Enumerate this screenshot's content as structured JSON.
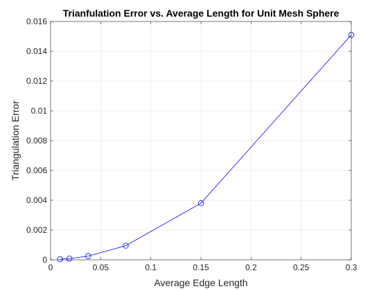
{
  "chart_data": {
    "type": "line",
    "title": "Trianfulation Error vs. Average Length for Unit Mesh Sphere",
    "xlabel": "Average Edge Length",
    "ylabel": "Triangulation Error",
    "xlim": [
      0,
      0.3
    ],
    "ylim": [
      0,
      0.016
    ],
    "xticks": [
      0,
      0.05,
      0.1,
      0.15,
      0.2,
      0.25,
      0.3
    ],
    "xtick_labels": [
      "0",
      "0.05",
      "0.1",
      "0.15",
      "0.2",
      "0.25",
      "0.3"
    ],
    "yticks": [
      0,
      0.002,
      0.004,
      0.006,
      0.008,
      0.01,
      0.012,
      0.014,
      0.016
    ],
    "ytick_labels": [
      "0",
      "0.002",
      "0.004",
      "0.006",
      "0.008",
      "0.01",
      "0.012",
      "0.014",
      "0.016"
    ],
    "grid": true,
    "marker": "circle",
    "series": [
      {
        "color": "#0000ff",
        "x": [
          0.0094,
          0.0188,
          0.0375,
          0.075,
          0.15,
          0.3
        ],
        "y": [
          4e-05,
          8e-05,
          0.00025,
          0.00095,
          0.0038,
          0.0151
        ]
      }
    ]
  }
}
